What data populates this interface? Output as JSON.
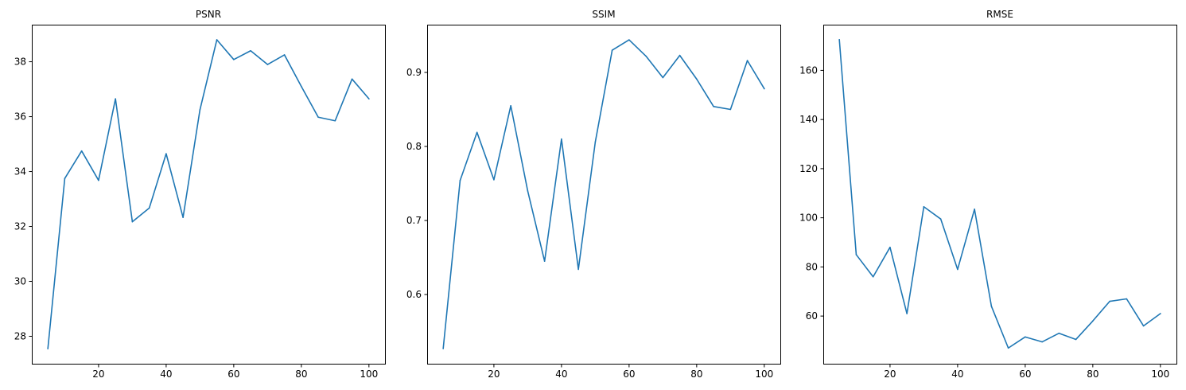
{
  "chart_data": [
    {
      "type": "line",
      "title": "PSNR",
      "xlabel": "",
      "ylabel": "",
      "xlim": [
        0.25,
        104.75
      ],
      "ylim": [
        27.0,
        39.35
      ],
      "xticks": [
        20,
        40,
        60,
        80,
        100
      ],
      "yticks": [
        28,
        30,
        32,
        34,
        36,
        38
      ],
      "grid": false,
      "color": "#1f77b4",
      "series": [
        {
          "x": [
            5,
            10,
            15,
            20,
            25,
            30,
            35,
            40,
            45,
            50,
            55,
            60,
            65,
            70,
            75,
            80,
            85,
            90,
            95,
            100
          ],
          "values": [
            27.55,
            33.75,
            34.75,
            33.68,
            36.65,
            32.17,
            32.67,
            34.65,
            32.33,
            36.25,
            38.8,
            38.08,
            38.4,
            37.9,
            38.25,
            37.1,
            35.98,
            35.85,
            37.37,
            36.65
          ]
        }
      ]
    },
    {
      "type": "line",
      "title": "SSIM",
      "xlabel": "",
      "ylabel": "",
      "xlim": [
        0.25,
        104.75
      ],
      "ylim": [
        0.5065,
        0.9645
      ],
      "xticks": [
        20,
        40,
        60,
        80,
        100
      ],
      "yticks": [
        0.6,
        0.7,
        0.8,
        0.9
      ],
      "grid": false,
      "color": "#1f77b4",
      "series": [
        {
          "x": [
            5,
            10,
            15,
            20,
            25,
            30,
            35,
            40,
            45,
            50,
            55,
            60,
            65,
            70,
            75,
            80,
            85,
            90,
            95,
            100
          ],
          "values": [
            0.527,
            0.754,
            0.819,
            0.755,
            0.855,
            0.74,
            0.645,
            0.81,
            0.634,
            0.806,
            0.93,
            0.944,
            0.922,
            0.893,
            0.923,
            0.891,
            0.854,
            0.85,
            0.916,
            0.878
          ]
        }
      ]
    },
    {
      "type": "line",
      "title": "RMSE",
      "xlabel": "",
      "ylabel": "",
      "xlim": [
        0.25,
        104.75
      ],
      "ylim": [
        40.6,
        178.6
      ],
      "xticks": [
        20,
        40,
        60,
        80,
        100
      ],
      "yticks": [
        60,
        80,
        100,
        120,
        140,
        160
      ],
      "grid": false,
      "color": "#1f77b4",
      "series": [
        {
          "x": [
            5,
            10,
            15,
            20,
            25,
            30,
            35,
            40,
            45,
            50,
            55,
            60,
            65,
            70,
            75,
            80,
            85,
            90,
            95,
            100
          ],
          "values": [
            172.5,
            85.0,
            76.0,
            88.0,
            61.0,
            104.5,
            99.5,
            79.0,
            103.5,
            64.0,
            47.0,
            51.5,
            49.5,
            53.0,
            50.5,
            58.0,
            66.0,
            67.0,
            56.0,
            61.0
          ]
        }
      ]
    }
  ]
}
